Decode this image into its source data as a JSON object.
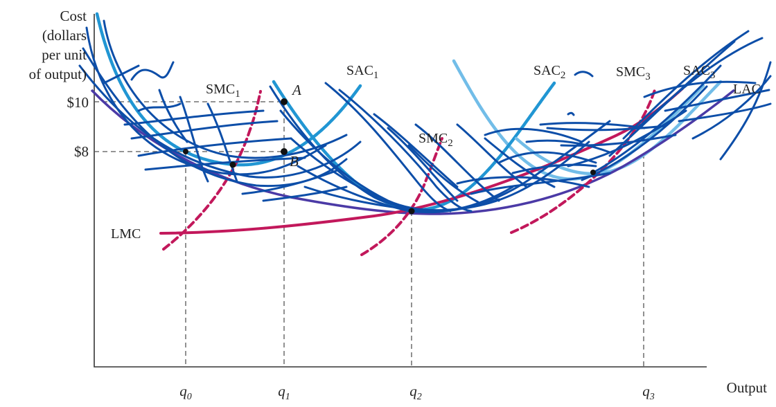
{
  "y_axis_label_lines": [
    "Cost",
    "(dollars",
    "per unit",
    "of output)"
  ],
  "x_axis_label": "Output",
  "price_labels": {
    "p10": "$10",
    "p8": "$8"
  },
  "quantity_labels": {
    "q0": "q",
    "q0_sub": "0",
    "q1": "q",
    "q1_sub": "1",
    "q2": "q",
    "q2_sub": "2",
    "q3": "q",
    "q3_sub": "3"
  },
  "curve_labels": {
    "smc1": "SMC",
    "smc1_sub": "1",
    "sac1": "SAC",
    "sac1_sub": "1",
    "sac2": "SAC",
    "sac2_sub": "2",
    "smc2": "SMC",
    "smc2_sub": "2",
    "smc3": "SMC",
    "smc3_sub": "3",
    "sac3": "SAC",
    "sac3_sub": "3",
    "lac": "LAC",
    "lmc": "LMC"
  },
  "point_labels": {
    "a": "A",
    "b": "B"
  },
  "colors": {
    "lac": "#4b3aa6",
    "marginal_cost": "#c2185b",
    "sac_light": "#72bde8",
    "sac_mid": "#2196d3",
    "scribble": "#0d4ea8"
  }
}
